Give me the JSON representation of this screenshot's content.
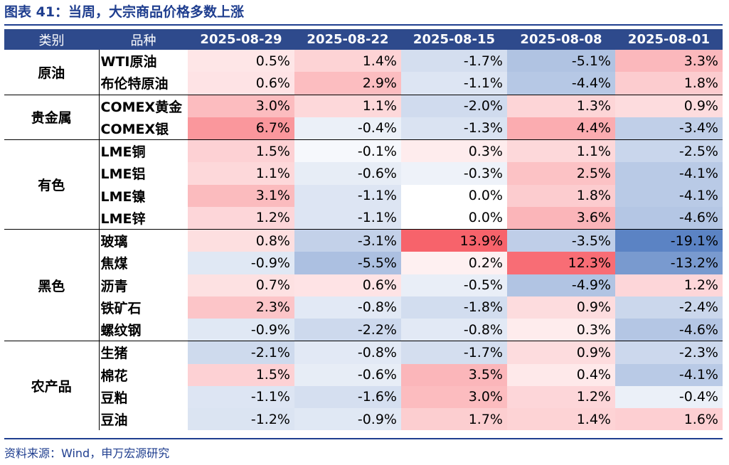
{
  "title": "图表 41：当周，大宗商品价格多数上涨",
  "header": {
    "category": "类别",
    "name": "品种",
    "dates": [
      "2025-08-29",
      "2025-08-22",
      "2025-08-15",
      "2025-08-08",
      "2025-08-01"
    ]
  },
  "groups": [
    {
      "category": "原油",
      "rows": [
        {
          "name": "WTI原油",
          "values": [
            "0.5%",
            "1.4%",
            "-1.7%",
            "-5.1%",
            "3.3%"
          ]
        },
        {
          "name": "布伦特原油",
          "values": [
            "0.6%",
            "2.9%",
            "-1.1%",
            "-4.4%",
            "1.8%"
          ]
        }
      ]
    },
    {
      "category": "贵金属",
      "rows": [
        {
          "name": "COMEX黄金",
          "values": [
            "3.0%",
            "1.1%",
            "-2.0%",
            "1.3%",
            "0.9%"
          ]
        },
        {
          "name": "COMEX银",
          "values": [
            "6.7%",
            "-0.4%",
            "-1.3%",
            "4.4%",
            "-3.4%"
          ]
        }
      ]
    },
    {
      "category": "有色",
      "rows": [
        {
          "name": "LME铜",
          "values": [
            "1.5%",
            "-0.1%",
            "0.3%",
            "1.1%",
            "-2.5%"
          ]
        },
        {
          "name": "LME铝",
          "values": [
            "1.1%",
            "-0.6%",
            "-0.3%",
            "2.5%",
            "-4.1%"
          ]
        },
        {
          "name": "LME镍",
          "values": [
            "3.1%",
            "-1.1%",
            "0.0%",
            "1.8%",
            "-4.1%"
          ]
        },
        {
          "name": "LME锌",
          "values": [
            "1.2%",
            "-1.1%",
            "0.0%",
            "3.6%",
            "-4.6%"
          ]
        }
      ]
    },
    {
      "category": "黑色",
      "rows": [
        {
          "name": "玻璃",
          "values": [
            "0.8%",
            "-3.1%",
            "13.9%",
            "-3.5%",
            "-19.1%"
          ]
        },
        {
          "name": "焦煤",
          "values": [
            "-0.9%",
            "-5.5%",
            "0.2%",
            "12.3%",
            "-13.2%"
          ]
        },
        {
          "name": "沥青",
          "values": [
            "0.7%",
            "0.6%",
            "-0.5%",
            "-4.9%",
            "1.2%"
          ]
        },
        {
          "name": "铁矿石",
          "values": [
            "2.3%",
            "-0.8%",
            "-1.8%",
            "0.9%",
            "-2.4%"
          ]
        },
        {
          "name": "螺纹钢",
          "values": [
            "-0.9%",
            "-2.2%",
            "-0.8%",
            "0.3%",
            "-4.6%"
          ]
        }
      ]
    },
    {
      "category": "农产品",
      "rows": [
        {
          "name": "生猪",
          "values": [
            "-2.1%",
            "-0.8%",
            "-1.7%",
            "0.9%",
            "-2.3%"
          ]
        },
        {
          "name": "棉花",
          "values": [
            "1.5%",
            "-0.6%",
            "3.5%",
            "0.4%",
            "-4.1%"
          ]
        },
        {
          "name": "豆粕",
          "values": [
            "-1.1%",
            "-1.6%",
            "3.0%",
            "1.2%",
            "-0.4%"
          ]
        },
        {
          "name": "豆油",
          "values": [
            "-1.2%",
            "-0.9%",
            "1.7%",
            "1.4%",
            "1.6%"
          ]
        }
      ]
    }
  ],
  "source": "资料来源：Wind，申万宏源研究",
  "colors": {
    "header_bg": "#2e4a8c",
    "title": "#1f3e8f",
    "positive": "#f7636b",
    "negative": "#5b83c4"
  }
}
